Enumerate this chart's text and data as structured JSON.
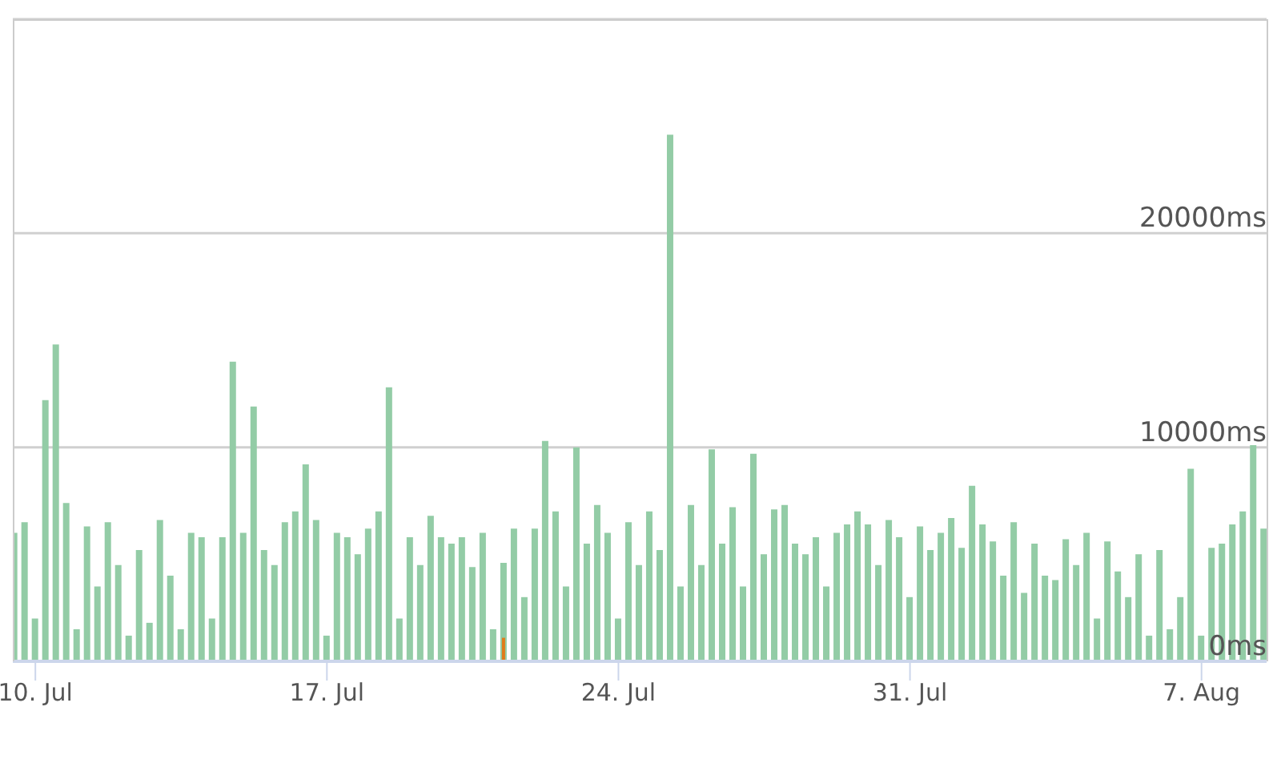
{
  "chart_data": {
    "type": "bar",
    "x": [
      "--07-09T12:00",
      "--07-09T18:00",
      "--07-10T00:00",
      "--07-10T06:00",
      "--07-10T12:00",
      "--07-10T18:00",
      "--07-11T00:00",
      "--07-11T06:00",
      "--07-11T12:00",
      "--07-11T18:00",
      "--07-12T00:00",
      "--07-12T06:00",
      "--07-12T12:00",
      "--07-12T18:00",
      "--07-13T00:00",
      "--07-13T06:00",
      "--07-13T12:00",
      "--07-13T18:00",
      "--07-14T00:00",
      "--07-14T06:00",
      "--07-14T12:00",
      "--07-14T18:00",
      "--07-15T00:00",
      "--07-15T06:00",
      "--07-15T12:00",
      "--07-15T18:00",
      "--07-16T00:00",
      "--07-16T06:00",
      "--07-16T12:00",
      "--07-16T18:00",
      "--07-17T00:00",
      "--07-17T06:00",
      "--07-17T12:00",
      "--07-17T18:00",
      "--07-18T00:00",
      "--07-18T06:00",
      "--07-18T12:00",
      "--07-18T18:00",
      "--07-19T00:00",
      "--07-19T06:00",
      "--07-19T12:00",
      "--07-19T18:00",
      "--07-20T00:00",
      "--07-20T06:00",
      "--07-20T12:00",
      "--07-20T18:00",
      "--07-21T00:00",
      "--07-21T06:00",
      "--07-21T12:00",
      "--07-21T18:00",
      "--07-22T00:00",
      "--07-22T06:00",
      "--07-22T12:00",
      "--07-22T18:00",
      "--07-23T00:00",
      "--07-23T06:00",
      "--07-23T12:00",
      "--07-23T18:00",
      "--07-24T00:00",
      "--07-24T06:00",
      "--07-24T12:00",
      "--07-24T18:00",
      "--07-25T00:00",
      "--07-25T06:00",
      "--07-25T12:00",
      "--07-25T18:00",
      "--07-26T00:00",
      "--07-26T06:00",
      "--07-26T12:00",
      "--07-26T18:00",
      "--07-27T00:00",
      "--07-27T06:00",
      "--07-27T12:00",
      "--07-27T18:00",
      "--07-28T00:00",
      "--07-28T06:00",
      "--07-28T12:00",
      "--07-28T18:00",
      "--07-29T00:00",
      "--07-29T06:00",
      "--07-29T12:00",
      "--07-29T18:00",
      "--07-30T00:00",
      "--07-30T06:00",
      "--07-30T12:00",
      "--07-30T18:00",
      "--07-31T00:00",
      "--07-31T06:00",
      "--07-31T12:00",
      "--07-31T18:00",
      "--08-01T00:00",
      "--08-01T06:00",
      "--08-01T12:00",
      "--08-01T18:00",
      "--08-02T00:00",
      "--08-02T06:00",
      "--08-02T12:00",
      "--08-02T18:00",
      "--08-03T00:00",
      "--08-03T06:00",
      "--08-03T12:00",
      "--08-03T18:00",
      "--08-04T00:00",
      "--08-04T06:00",
      "--08-04T12:00",
      "--08-04T18:00",
      "--08-05T00:00",
      "--08-05T06:00",
      "--08-05T12:00",
      "--08-05T18:00",
      "--08-06T00:00",
      "--08-06T06:00",
      "--08-06T12:00",
      "--08-06T18:00",
      "--08-07T00:00",
      "--08-07T06:00",
      "--08-07T12:00",
      "--08-07T18:00",
      "--08-08T00:00",
      "--08-08T06:00",
      "--08-08T12:00"
    ],
    "series": [
      {
        "color": "#93cca6",
        "values": [
          6000,
          6500,
          2000,
          12200,
          14800,
          7400,
          1500,
          6300,
          3500,
          6500,
          4500,
          1200,
          5200,
          1800,
          6600,
          4000,
          1500,
          6000,
          5800,
          2000,
          5800,
          14000,
          6000,
          11900,
          5200,
          4500,
          6500,
          7000,
          9200,
          6600,
          1200,
          6000,
          5800,
          5000,
          6200,
          7000,
          12800,
          2000,
          5800,
          4500,
          6800,
          5800,
          5500,
          5800,
          4400,
          6000,
          1500,
          4600,
          6200,
          3000,
          6200,
          10300,
          7000,
          3500,
          10000,
          5500,
          7300,
          6000,
          2000,
          6500,
          4500,
          7000,
          5200,
          24600,
          3500,
          7300,
          4500,
          9900,
          5500,
          7200,
          3500,
          9700,
          5000,
          7100,
          7300,
          5500,
          5000,
          5800,
          3500,
          6000,
          6400,
          7000,
          6400,
          4500,
          6600,
          5800,
          3000,
          6300,
          5200,
          6000,
          6700,
          5300,
          8200,
          6400,
          5600,
          4000,
          6500,
          3200,
          5500,
          4000,
          3800,
          5700,
          4500,
          6000,
          2000,
          5600,
          4200,
          3000,
          5000,
          1200,
          5200,
          1500,
          3000,
          9000,
          1200,
          5300,
          5500,
          6400,
          7000,
          10100,
          6200
        ]
      },
      {
        "color": "#e07b1a",
        "x": [
          "--07-21T06:00"
        ],
        "values": [
          1100
        ]
      }
    ],
    "xlim": [
      "--07-09T11:00",
      "--08-08T13:30"
    ],
    "xticks": [
      {
        "value": "--07-10",
        "label": "10. Jul"
      },
      {
        "value": "--07-17",
        "label": "17. Jul"
      },
      {
        "value": "--07-24",
        "label": "24. Jul"
      },
      {
        "value": "--07-31",
        "label": "31. Jul"
      },
      {
        "value": "--08-07",
        "label": "7. Aug"
      }
    ],
    "ylim": [
      0,
      30000
    ],
    "yticks": [
      {
        "value": 0,
        "label": "0ms"
      },
      {
        "value": 10000,
        "label": "10000ms"
      },
      {
        "value": 20000,
        "label": "20000ms"
      }
    ],
    "grid": "y",
    "legend": false
  }
}
